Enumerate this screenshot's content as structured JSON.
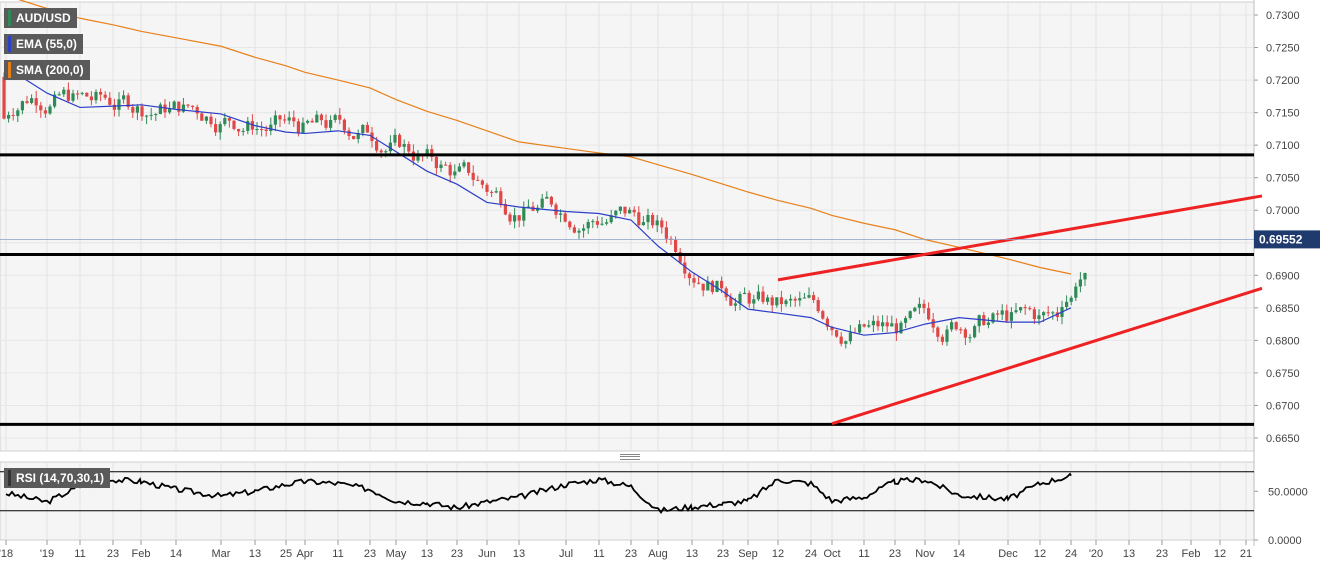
{
  "instrument": "AUD/USD",
  "indicators": {
    "ema": {
      "label": "EMA (55,0)",
      "color": "#2b3fc8"
    },
    "sma": {
      "label": "SMA (200,0)",
      "color": "#e8801a"
    },
    "rsi": {
      "label": "RSI (14,70,30,1)"
    }
  },
  "price_tag": {
    "value": "0.69552",
    "price": 0.69552
  },
  "colors": {
    "bull": "#2e8b57",
    "bear": "#e04848",
    "trend": "#ee2222",
    "level": "#000000",
    "plot_bg": "#f5f5f5"
  },
  "chart_data": [
    {
      "type": "candlestick",
      "title": "AUD/USD",
      "y_axis_side": "right",
      "ylim": [
        0.663,
        0.732
      ],
      "y_ticks": [
        "0.7300",
        "0.7250",
        "0.7200",
        "0.7150",
        "0.7100",
        "0.7050",
        "0.7000",
        "0.6950",
        "0.6900",
        "0.6850",
        "0.6800",
        "0.6750",
        "0.6700",
        "0.6650"
      ],
      "x_ticks": [
        "'18",
        "'19",
        "11",
        "23",
        "Feb",
        "14",
        "Mar",
        "13",
        "25",
        "Apr",
        "11",
        "23",
        "May",
        "13",
        "23",
        "Jun",
        "13",
        "Jul",
        "11",
        "23",
        "Aug",
        "13",
        "23",
        "Sep",
        "12",
        "24",
        "Oct",
        "11",
        "23",
        "Nov",
        "14",
        "Dec",
        "12",
        "24",
        "'20",
        "13",
        "23",
        "Feb",
        "12",
        "21"
      ],
      "grid": true,
      "horizontal_levels": [
        0.7085,
        0.6932,
        0.6671
      ],
      "trendlines": [
        {
          "from": [
            "Sep 12",
            0.6893
          ],
          "to": [
            "Feb 21",
            0.7022
          ]
        },
        {
          "from": [
            "Oct 1",
            0.6672
          ],
          "to": [
            "Feb 21",
            0.688
          ]
        }
      ],
      "series": [
        {
          "name": "EMA (55,0)",
          "points": [
            [
              "'18",
              0.722
            ],
            [
              "'19",
              0.718
            ],
            [
              "11",
              0.7158
            ],
            [
              "23",
              0.716
            ],
            [
              "Feb",
              0.7162
            ],
            [
              "14",
              0.7155
            ],
            [
              "Mar",
              0.7148
            ],
            [
              "13",
              0.713
            ],
            [
              "25",
              0.712
            ],
            [
              "Apr",
              0.7118
            ],
            [
              "11",
              0.7122
            ],
            [
              "23",
              0.7115
            ],
            [
              "May",
              0.709
            ],
            [
              "13",
              0.706
            ],
            [
              "23",
              0.704
            ],
            [
              "Jun",
              0.7012
            ],
            [
              "13",
              0.7005
            ],
            [
              "Jul",
              0.6998
            ],
            [
              "11",
              0.6995
            ],
            [
              "23",
              0.6985
            ],
            [
              "Aug",
              0.6945
            ],
            [
              "13",
              0.6905
            ],
            [
              "23",
              0.6875
            ],
            [
              "Sep",
              0.6848
            ],
            [
              "12",
              0.6842
            ],
            [
              "24",
              0.6835
            ],
            [
              "Oct",
              0.682
            ],
            [
              "11",
              0.6808
            ],
            [
              "23",
              0.6812
            ],
            [
              "Nov",
              0.6825
            ],
            [
              "14",
              0.6835
            ],
            [
              "Dec",
              0.6828
            ],
            [
              "12",
              0.6828
            ],
            [
              "24",
              0.685
            ]
          ]
        },
        {
          "name": "SMA (200,0)",
          "points": [
            [
              "'18",
              0.733
            ],
            [
              "'19",
              0.731
            ],
            [
              "11",
              0.7295
            ],
            [
              "23",
              0.7285
            ],
            [
              "Feb",
              0.7275
            ],
            [
              "14",
              0.7265
            ],
            [
              "Mar",
              0.7252
            ],
            [
              "13",
              0.7235
            ],
            [
              "25",
              0.7222
            ],
            [
              "Apr",
              0.7212
            ],
            [
              "11",
              0.72
            ],
            [
              "23",
              0.7188
            ],
            [
              "May",
              0.717
            ],
            [
              "13",
              0.7152
            ],
            [
              "23",
              0.7138
            ],
            [
              "Jun",
              0.7122
            ],
            [
              "13",
              0.7105
            ],
            [
              "Jul",
              0.7095
            ],
            [
              "11",
              0.7088
            ],
            [
              "23",
              0.7082
            ],
            [
              "Aug",
              0.707
            ],
            [
              "13",
              0.7055
            ],
            [
              "23",
              0.704
            ],
            [
              "Sep",
              0.7028
            ],
            [
              "12",
              0.7015
            ],
            [
              "24",
              0.7003
            ],
            [
              "Oct",
              0.6992
            ],
            [
              "11",
              0.698
            ],
            [
              "23",
              0.697
            ],
            [
              "Nov",
              0.6955
            ],
            [
              "14",
              0.6943
            ],
            [
              "Dec",
              0.6925
            ],
            [
              "12",
              0.6912
            ],
            [
              "24",
              0.6902
            ]
          ]
        }
      ]
    },
    {
      "type": "line",
      "title": "RSI (14,70,30,1)",
      "ylim": [
        0,
        80
      ],
      "y_ticks": [
        "50.0000",
        "0.0000"
      ],
      "guide_levels": [
        70,
        30
      ],
      "series": [
        {
          "name": "RSI (14,70,30,1)",
          "points": [
            [
              "'18",
              48
            ],
            [
              "'19",
              39
            ],
            [
              "11",
              55
            ],
            [
              "23",
              62
            ],
            [
              "Feb",
              60
            ],
            [
              "14",
              52
            ],
            [
              "Mar",
              45
            ],
            [
              "13",
              50
            ],
            [
              "25",
              57
            ],
            [
              "Apr",
              60
            ],
            [
              "11",
              58
            ],
            [
              "23",
              52
            ],
            [
              "May",
              40
            ],
            [
              "13",
              38
            ],
            [
              "23",
              33
            ],
            [
              "Jun",
              39
            ],
            [
              "13",
              44
            ],
            [
              "Jul",
              57
            ],
            [
              "11",
              62
            ],
            [
              "23",
              55
            ],
            [
              "Aug",
              30
            ],
            [
              "13",
              34
            ],
            [
              "23",
              37
            ],
            [
              "Sep",
              40
            ],
            [
              "12",
              62
            ],
            [
              "24",
              58
            ],
            [
              "Oct",
              40
            ],
            [
              "11",
              44
            ],
            [
              "23",
              60
            ],
            [
              "Nov",
              62
            ],
            [
              "14",
              46
            ],
            [
              "Dec",
              42
            ],
            [
              "12",
              58
            ],
            [
              "24",
              66
            ]
          ]
        }
      ]
    }
  ]
}
